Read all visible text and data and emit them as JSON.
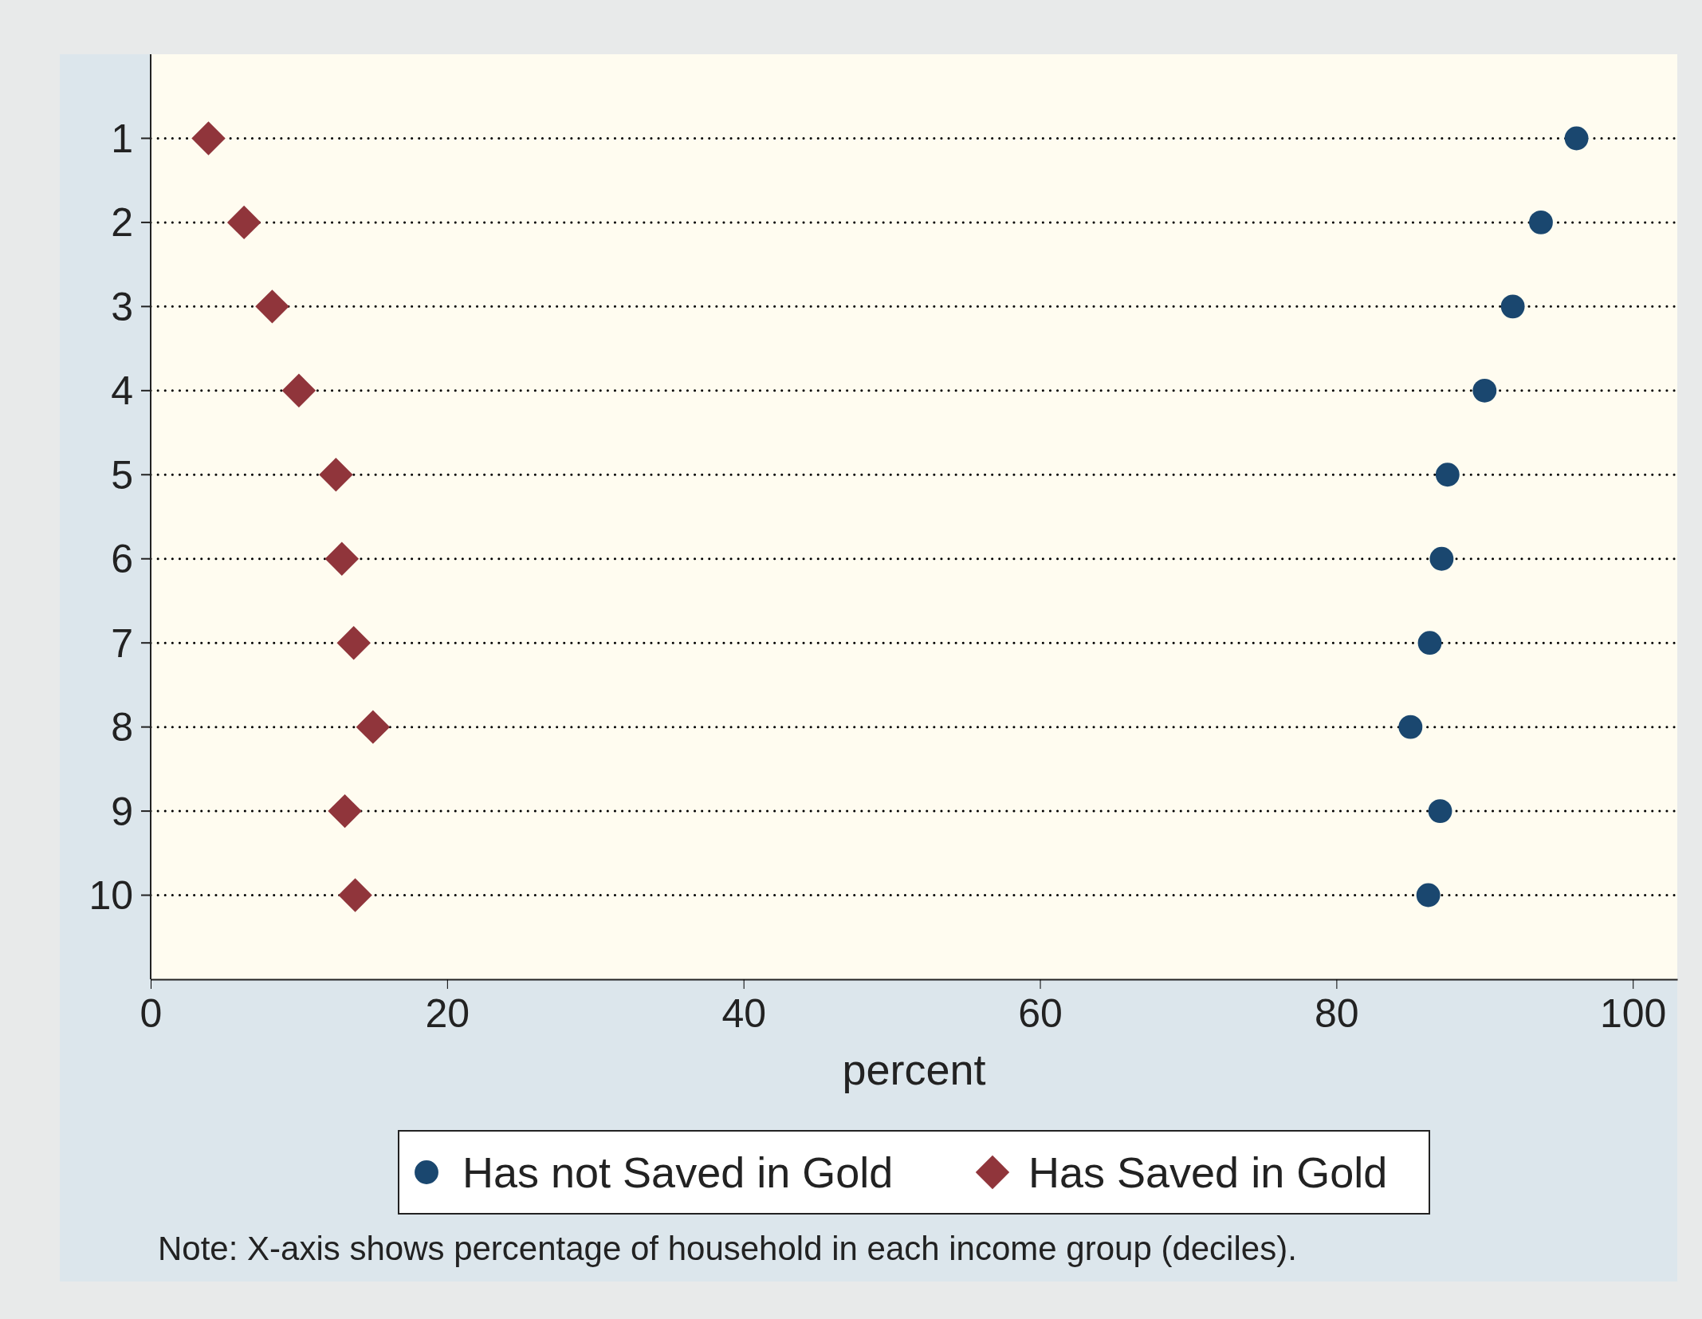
{
  "chart_data": {
    "type": "scatter",
    "orientation": "horizontal",
    "categories": [
      "1",
      "2",
      "3",
      "4",
      "5",
      "6",
      "7",
      "8",
      "9",
      "10"
    ],
    "series": [
      {
        "name": "Has not Saved in Gold",
        "color": "#1a476f",
        "marker": "circle",
        "values": [
          96.2,
          93.8,
          91.9,
          90.0,
          87.5,
          87.1,
          86.3,
          85.0,
          87.0,
          86.2
        ]
      },
      {
        "name": "Has Saved in Gold",
        "color": "#90353b",
        "marker": "diamond",
        "values": [
          3.9,
          6.3,
          8.2,
          10.0,
          12.5,
          12.9,
          13.7,
          15.0,
          13.1,
          13.8
        ]
      }
    ],
    "xlim": [
      0,
      103
    ],
    "xticks": [
      0,
      20,
      40,
      60,
      80,
      100
    ],
    "xlabel": "percent",
    "grid": "y",
    "legend": "bottom",
    "annotations": [
      "Note: X-axis shows percentage of household in each income group (deciles)."
    ]
  }
}
